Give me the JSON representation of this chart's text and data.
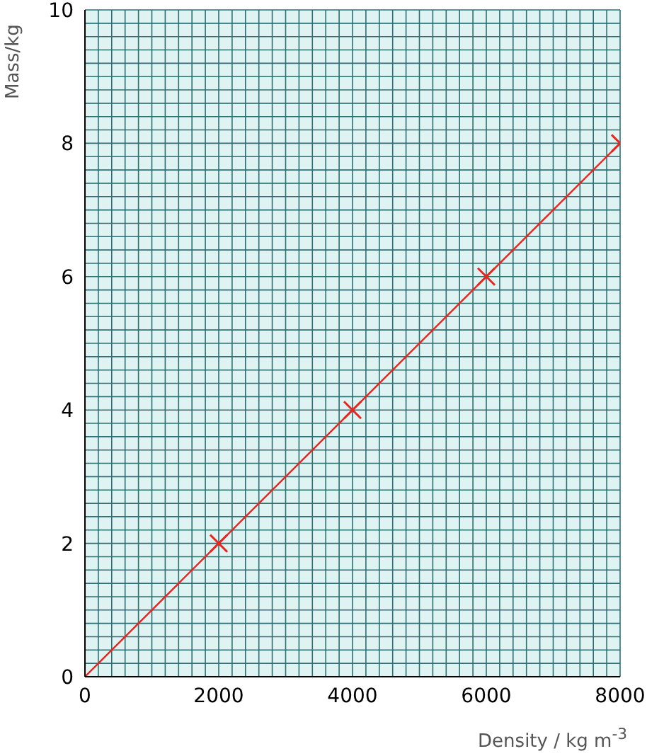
{
  "chart_data": {
    "type": "scatter",
    "xlabel": "Density / kg m$^{-3}$",
    "ylabel": "Mass/kg",
    "xlim": [
      0,
      8000
    ],
    "ylim": [
      0,
      10
    ],
    "xticks": [
      0,
      {
        "value": 200,
        "label": null
      },
      {
        "value": 400,
        "label": null
      },
      {
        "value": 600,
        "label": null
      },
      {
        "value": 800,
        "label": null
      },
      {
        "value": 1000,
        "label": null
      },
      {
        "value": 1200,
        "label": null
      },
      {
        "value": 1400,
        "label": null
      },
      {
        "value": 1600,
        "label": null
      },
      {
        "value": 1800,
        "label": null
      },
      2000,
      {
        "value": 2200,
        "label": null
      },
      {
        "value": 2400,
        "label": null
      },
      {
        "value": 2600,
        "label": null
      },
      {
        "value": 2800,
        "label": null
      },
      {
        "value": 3000,
        "label": null
      },
      {
        "value": 3200,
        "label": null
      },
      {
        "value": 3400,
        "label": null
      },
      {
        "value": 3600,
        "label": null
      },
      {
        "value": 3800,
        "label": null
      },
      4000,
      {
        "value": 4200,
        "label": null
      },
      {
        "value": 4400,
        "label": null
      },
      {
        "value": 4600,
        "label": null
      },
      {
        "value": 4800,
        "label": null
      },
      {
        "value": 5000,
        "label": null
      },
      {
        "value": 5200,
        "label": null
      },
      {
        "value": 5400,
        "label": null
      },
      {
        "value": 5600,
        "label": null
      },
      {
        "value": 5800,
        "label": null
      },
      6000,
      {
        "value": 6200,
        "label": null
      },
      {
        "value": 6400,
        "label": null
      },
      {
        "value": 6600,
        "label": null
      },
      {
        "value": 6800,
        "label": null
      },
      {
        "value": 7000,
        "label": null
      },
      {
        "value": 7200,
        "label": null
      },
      {
        "value": 7400,
        "label": null
      },
      {
        "value": 7600,
        "label": null
      },
      {
        "value": 7800,
        "label": null
      },
      8000
    ],
    "yticks": [
      0,
      {
        "value": 0.2,
        "label": null
      },
      {
        "value": 0.4,
        "label": null
      },
      {
        "value": 0.6,
        "label": null
      },
      {
        "value": 0.8,
        "label": null
      },
      {
        "value": 1,
        "label": null
      },
      {
        "value": 1.2,
        "label": null
      },
      {
        "value": 1.4,
        "label": null
      },
      {
        "value": 1.6,
        "label": null
      },
      {
        "value": 1.8,
        "label": null
      },
      2,
      {
        "value": 2.2,
        "label": null
      },
      {
        "value": 2.4,
        "label": null
      },
      {
        "value": 2.6,
        "label": null
      },
      {
        "value": 2.8,
        "label": null
      },
      {
        "value": 3,
        "label": null
      },
      {
        "value": 3.2,
        "label": null
      },
      {
        "value": 3.4,
        "label": null
      },
      {
        "value": 3.6,
        "label": null
      },
      {
        "value": 3.8,
        "label": null
      },
      4,
      {
        "value": 4.2,
        "label": null
      },
      {
        "value": 4.4,
        "label": null
      },
      {
        "value": 4.6,
        "label": null
      },
      {
        "value": 4.8,
        "label": null
      },
      {
        "value": 5,
        "label": null
      },
      {
        "value": 5.2,
        "label": null
      },
      {
        "value": 5.4,
        "label": null
      },
      {
        "value": 5.6,
        "label": null
      },
      {
        "value": 5.8,
        "label": null
      },
      6,
      {
        "value": 6.2,
        "label": null
      },
      {
        "value": 6.4,
        "label": null
      },
      {
        "value": 6.6,
        "label": null
      },
      {
        "value": 6.8,
        "label": null
      },
      {
        "value": 7,
        "label": null
      },
      {
        "value": 7.2,
        "label": null
      },
      {
        "value": 7.4,
        "label": null
      },
      {
        "value": 7.6,
        "label": null
      },
      {
        "value": 7.8,
        "label": null
      },
      8,
      {
        "value": 8.2,
        "label": null
      },
      {
        "value": 8.4,
        "label": null
      },
      {
        "value": 8.6,
        "label": null
      },
      {
        "value": 8.8,
        "label": null
      },
      {
        "value": 9,
        "label": null
      },
      {
        "value": 9.2,
        "label": null
      },
      {
        "value": 9.4,
        "label": null
      },
      {
        "value": 9.6,
        "label": null
      },
      {
        "value": 9.8,
        "label": null
      },
      10
    ],
    "grid": true,
    "series": [
      {
        "color": "#e8251f",
        "marker": "cross",
        "x": [
          2000,
          4000,
          6000,
          8000
        ],
        "values": [
          2,
          4,
          6,
          8
        ]
      },
      {
        "type": "line",
        "color": "#e8251f",
        "marker": "none",
        "line_style": "solid",
        "x": [
          0,
          8000
        ],
        "values": [
          0,
          8
        ]
      }
    ]
  }
}
